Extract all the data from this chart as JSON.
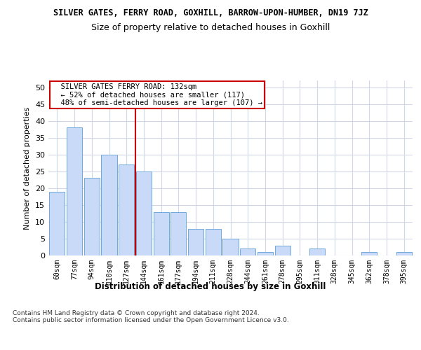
{
  "title1": "SILVER GATES, FERRY ROAD, GOXHILL, BARROW-UPON-HUMBER, DN19 7JZ",
  "title2": "Size of property relative to detached houses in Goxhill",
  "xlabel": "Distribution of detached houses by size in Goxhill",
  "ylabel": "Number of detached properties",
  "categories": [
    "60sqm",
    "77sqm",
    "94sqm",
    "110sqm",
    "127sqm",
    "144sqm",
    "161sqm",
    "177sqm",
    "194sqm",
    "211sqm",
    "228sqm",
    "244sqm",
    "261sqm",
    "278sqm",
    "295sqm",
    "311sqm",
    "328sqm",
    "345sqm",
    "362sqm",
    "378sqm",
    "395sqm"
  ],
  "values": [
    19,
    38,
    23,
    30,
    27,
    25,
    13,
    13,
    8,
    8,
    5,
    2,
    1,
    3,
    0,
    2,
    0,
    0,
    1,
    0,
    1
  ],
  "bar_color": "#c9daf8",
  "bar_edgecolor": "#6fa8dc",
  "vline_x": 4.5,
  "vline_color": "#cc0000",
  "annotation_text": "  SILVER GATES FERRY ROAD: 132sqm\n  ← 52% of detached houses are smaller (117)\n  48% of semi-detached houses are larger (107) →",
  "annotation_box_color": "#ffffff",
  "annotation_box_edgecolor": "#cc0000",
  "ylim": [
    0,
    52
  ],
  "yticks": [
    0,
    5,
    10,
    15,
    20,
    25,
    30,
    35,
    40,
    45,
    50
  ],
  "footnote": "Contains HM Land Registry data © Crown copyright and database right 2024.\nContains public sector information licensed under the Open Government Licence v3.0.",
  "background_color": "#ffffff",
  "grid_color": "#d0d8e8"
}
